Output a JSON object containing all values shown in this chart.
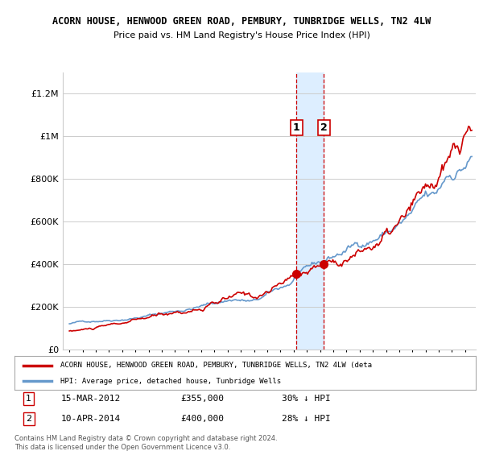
{
  "title1": "ACORN HOUSE, HENWOOD GREEN ROAD, PEMBURY, TUNBRIDGE WELLS, TN2 4LW",
  "title2": "Price paid vs. HM Land Registry's House Price Index (HPI)",
  "legend_label_red": "ACORN HOUSE, HENWOOD GREEN ROAD, PEMBURY, TUNBRIDGE WELLS, TN2 4LW (deta",
  "legend_label_blue": "HPI: Average price, detached house, Tunbridge Wells",
  "transaction1_date": "15-MAR-2012",
  "transaction1_price": 355000,
  "transaction1_pct": "30% ↓ HPI",
  "transaction2_date": "10-APR-2014",
  "transaction2_price": 400000,
  "transaction2_pct": "28% ↓ HPI",
  "footer": "Contains HM Land Registry data © Crown copyright and database right 2024.\nThis data is licensed under the Open Government Licence v3.0.",
  "ylim": [
    0,
    1300000
  ],
  "yticks": [
    0,
    200000,
    400000,
    600000,
    800000,
    1000000,
    1200000
  ],
  "ytick_labels": [
    "£0",
    "£200K",
    "£400K",
    "£600K",
    "£800K",
    "£1M",
    "£1.2M"
  ],
  "background_color": "#ffffff",
  "grid_color": "#cccccc",
  "red_color": "#cc0000",
  "blue_color": "#6699cc",
  "highlight_color": "#ddeeff",
  "vline_color": "#cc0000",
  "transaction1_x": 2012.2,
  "transaction2_x": 2014.28,
  "xlim_left": 1994.5,
  "xlim_right": 2025.8,
  "xtick_start": 1995,
  "xtick_end": 2025
}
